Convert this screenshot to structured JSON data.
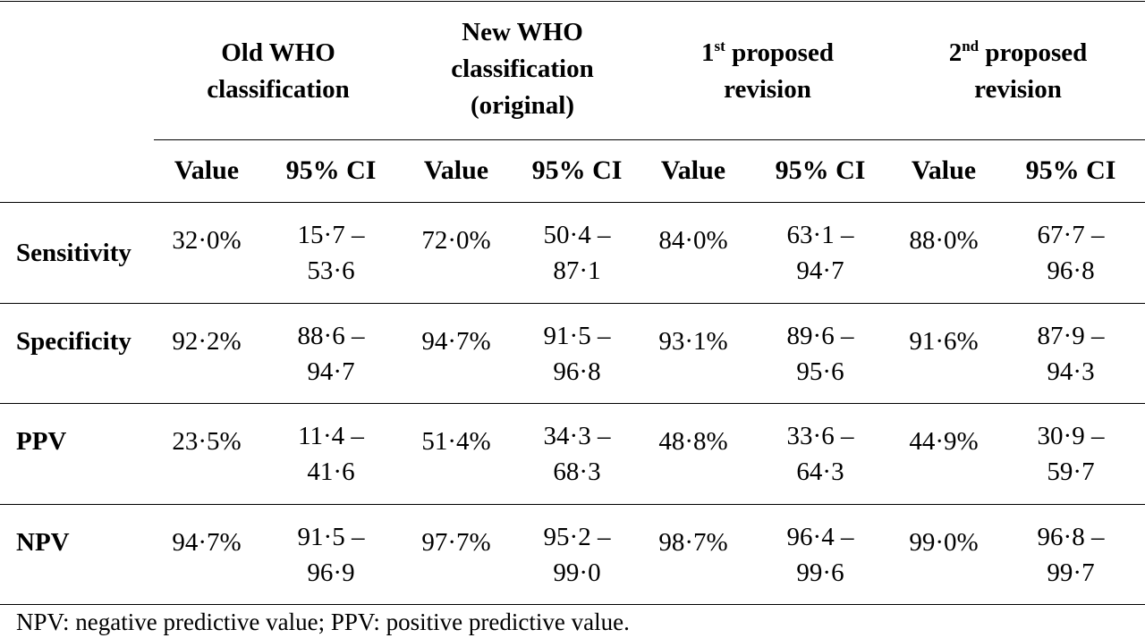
{
  "table": {
    "groups": [
      {
        "lines": [
          "Old WHO",
          "classification"
        ]
      },
      {
        "lines": [
          "New WHO",
          "classification",
          "(original)"
        ]
      },
      {
        "lines": [
          "1",
          "st",
          " proposed",
          "revision"
        ]
      },
      {
        "lines": [
          "2",
          "nd",
          " proposed",
          "revision"
        ]
      }
    ],
    "subheaders": {
      "value": "Value",
      "ci": "95% CI"
    },
    "rows": [
      {
        "label": "Sensitivity",
        "cells": [
          {
            "value": "32·0%",
            "ci_a": "15·7 –",
            "ci_b": "53·6"
          },
          {
            "value": "72·0%",
            "ci_a": "50·4 –",
            "ci_b": "87·1"
          },
          {
            "value": "84·0%",
            "ci_a": "63·1 –",
            "ci_b": "94·7"
          },
          {
            "value": "88·0%",
            "ci_a": "67·7 –",
            "ci_b": "96·8"
          }
        ]
      },
      {
        "label": "Specificity",
        "cells": [
          {
            "value": "92·2%",
            "ci_a": "88·6 –",
            "ci_b": "94·7"
          },
          {
            "value": "94·7%",
            "ci_a": "91·5 –",
            "ci_b": "96·8"
          },
          {
            "value": "93·1%",
            "ci_a": "89·6 –",
            "ci_b": "95·6"
          },
          {
            "value": "91·6%",
            "ci_a": "87·9 –",
            "ci_b": "94·3"
          }
        ]
      },
      {
        "label": "PPV",
        "cells": [
          {
            "value": "23·5%",
            "ci_a": "11·4 –",
            "ci_b": "41·6"
          },
          {
            "value": "51·4%",
            "ci_a": "34·3 –",
            "ci_b": "68·3"
          },
          {
            "value": "48·8%",
            "ci_a": "33·6 –",
            "ci_b": "64·3"
          },
          {
            "value": "44·9%",
            "ci_a": "30·9 –",
            "ci_b": "59·7"
          }
        ]
      },
      {
        "label": "NPV",
        "cells": [
          {
            "value": "94·7%",
            "ci_a": "91·5 –",
            "ci_b": "96·9"
          },
          {
            "value": "97·7%",
            "ci_a": "95·2 –",
            "ci_b": "99·0"
          },
          {
            "value": "98·7%",
            "ci_a": "96·4 –",
            "ci_b": "99·6"
          },
          {
            "value": "99·0%",
            "ci_a": "96·8 –",
            "ci_b": "99·7"
          }
        ]
      }
    ],
    "footnote": "NPV: negative predictive value; PPV: positive predictive value."
  }
}
